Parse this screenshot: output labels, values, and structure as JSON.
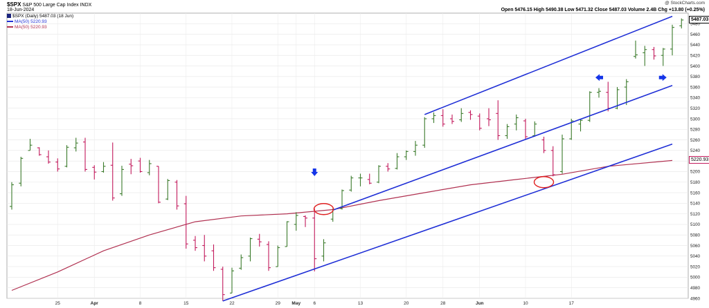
{
  "header": {
    "symbol": "$SPX",
    "name": "S&P 500 Large Cap Index",
    "exchange": "INDX",
    "date": "18-Jun-2024",
    "watermark": "@ StockCharts.com",
    "ohlc": "Open 5476.15  High 5490.38  Low 5471.32  Close 5487.03  Volume 2.4B  Chg +13.80 (+0.25%)"
  },
  "legend": {
    "price": "$SPX (Daily) 5487.03 (18 Jun)",
    "ma_a": "MA(50) 5220.93",
    "ma_b": "MA(50) 5220.93"
  },
  "last_price_label": "5487.03",
  "last_ma_label": "5220.93",
  "colors": {
    "up": "#3a7a2a",
    "down": "#c2185b",
    "ma": "#b03050",
    "channel": "#1f2fd6",
    "circle": "#e02020",
    "arrow": "#1535e8"
  },
  "chart_data": {
    "type": "ohlc",
    "ylim": [
      4960,
      5500
    ],
    "y_ticks": [
      4960,
      4980,
      5000,
      5020,
      5040,
      5060,
      5080,
      5100,
      5120,
      5140,
      5160,
      5180,
      5200,
      5220,
      5240,
      5260,
      5280,
      5300,
      5320,
      5340,
      5360,
      5380,
      5400,
      5420,
      5440,
      5460,
      5480
    ],
    "x_labels": [
      {
        "i": 5,
        "label": "25"
      },
      {
        "i": 9,
        "label": "Apr"
      },
      {
        "i": 14,
        "label": "8"
      },
      {
        "i": 19,
        "label": "15"
      },
      {
        "i": 24,
        "label": "22"
      },
      {
        "i": 29,
        "label": "29"
      },
      {
        "i": 31,
        "label": "May"
      },
      {
        "i": 33,
        "label": "6"
      },
      {
        "i": 38,
        "label": "13"
      },
      {
        "i": 43,
        "label": "20"
      },
      {
        "i": 47,
        "label": "28"
      },
      {
        "i": 51,
        "label": "Jun"
      },
      {
        "i": 56,
        "label": "10"
      },
      {
        "i": 61,
        "label": "17"
      }
    ],
    "bars": [
      {
        "o": 5134,
        "h": 5180,
        "l": 5128,
        "c": 5175
      },
      {
        "o": 5178,
        "h": 5228,
        "l": 5172,
        "c": 5225
      },
      {
        "o": 5240,
        "h": 5262,
        "l": 5240,
        "c": 5250
      },
      {
        "o": 5245,
        "h": 5246,
        "l": 5230,
        "c": 5232
      },
      {
        "o": 5228,
        "h": 5240,
        "l": 5215,
        "c": 5218
      },
      {
        "o": 5218,
        "h": 5225,
        "l": 5200,
        "c": 5205
      },
      {
        "o": 5210,
        "h": 5250,
        "l": 5208,
        "c": 5246
      },
      {
        "o": 5245,
        "h": 5264,
        "l": 5238,
        "c": 5254
      },
      {
        "o": 5256,
        "h": 5264,
        "l": 5200,
        "c": 5204
      },
      {
        "o": 5208,
        "h": 5212,
        "l": 5185,
        "c": 5199
      },
      {
        "o": 5200,
        "h": 5218,
        "l": 5198,
        "c": 5210
      },
      {
        "o": 5212,
        "h": 5255,
        "l": 5145,
        "c": 5150
      },
      {
        "o": 5158,
        "h": 5211,
        "l": 5154,
        "c": 5204
      },
      {
        "o": 5214,
        "h": 5224,
        "l": 5195,
        "c": 5211
      },
      {
        "o": 5220,
        "h": 5226,
        "l": 5198,
        "c": 5200
      },
      {
        "o": 5198,
        "h": 5222,
        "l": 5193,
        "c": 5215
      },
      {
        "o": 5210,
        "h": 5210,
        "l": 5140,
        "c": 5142
      },
      {
        "o": 5148,
        "h": 5186,
        "l": 5146,
        "c": 5183
      },
      {
        "o": 5180,
        "h": 5184,
        "l": 5128,
        "c": 5135
      },
      {
        "o": 5139,
        "h": 5154,
        "l": 5054,
        "c": 5063
      },
      {
        "o": 5070,
        "h": 5078,
        "l": 5050,
        "c": 5056
      },
      {
        "o": 5060,
        "h": 5080,
        "l": 5030,
        "c": 5040
      },
      {
        "o": 5050,
        "h": 5062,
        "l": 5012,
        "c": 5018
      },
      {
        "o": 5015,
        "h": 5020,
        "l": 4955,
        "c": 4967
      },
      {
        "o": 4970,
        "h": 5018,
        "l": 4970,
        "c": 5012
      },
      {
        "o": 5017,
        "h": 5043,
        "l": 5014,
        "c": 5037
      },
      {
        "o": 5040,
        "h": 5075,
        "l": 5030,
        "c": 5073
      },
      {
        "o": 5072,
        "h": 5082,
        "l": 5058,
        "c": 5067
      },
      {
        "o": 5062,
        "h": 5068,
        "l": 5012,
        "c": 5018
      },
      {
        "o": 5020,
        "h": 5060,
        "l": 5020,
        "c": 5056
      },
      {
        "o": 5058,
        "h": 5106,
        "l": 5058,
        "c": 5105
      },
      {
        "o": 5100,
        "h": 5123,
        "l": 5088,
        "c": 5117
      },
      {
        "o": 5115,
        "h": 5117,
        "l": 5095,
        "c": 5112
      },
      {
        "o": 5112,
        "h": 5130,
        "l": 5011,
        "c": 5035
      },
      {
        "o": 5040,
        "h": 5072,
        "l": 5030,
        "c": 5065
      },
      {
        "o": 5110,
        "h": 5130,
        "l": 5105,
        "c": 5128
      },
      {
        "o": 5130,
        "h": 5166,
        "l": 5128,
        "c": 5164
      },
      {
        "o": 5165,
        "h": 5192,
        "l": 5162,
        "c": 5188
      },
      {
        "o": 5188,
        "h": 5196,
        "l": 5172,
        "c": 5188
      },
      {
        "o": 5185,
        "h": 5196,
        "l": 5176,
        "c": 5178
      },
      {
        "o": 5180,
        "h": 5212,
        "l": 5178,
        "c": 5210
      },
      {
        "o": 5210,
        "h": 5216,
        "l": 5200,
        "c": 5205
      },
      {
        "o": 5206,
        "h": 5235,
        "l": 5204,
        "c": 5228
      },
      {
        "o": 5228,
        "h": 5240,
        "l": 5222,
        "c": 5238
      },
      {
        "o": 5238,
        "h": 5258,
        "l": 5230,
        "c": 5250
      },
      {
        "o": 5250,
        "h": 5303,
        "l": 5245,
        "c": 5300
      },
      {
        "o": 5300,
        "h": 5312,
        "l": 5292,
        "c": 5306
      },
      {
        "o": 5306,
        "h": 5318,
        "l": 5285,
        "c": 5290
      },
      {
        "o": 5300,
        "h": 5308,
        "l": 5290,
        "c": 5295
      },
      {
        "o": 5298,
        "h": 5320,
        "l": 5294,
        "c": 5310
      },
      {
        "o": 5312,
        "h": 5316,
        "l": 5298,
        "c": 5308
      },
      {
        "o": 5305,
        "h": 5310,
        "l": 5278,
        "c": 5282
      },
      {
        "o": 5300,
        "h": 5320,
        "l": 5286,
        "c": 5298
      },
      {
        "o": 5310,
        "h": 5335,
        "l": 5260,
        "c": 5268
      },
      {
        "o": 5268,
        "h": 5290,
        "l": 5262,
        "c": 5285
      },
      {
        "o": 5290,
        "h": 5308,
        "l": 5278,
        "c": 5302
      },
      {
        "o": 5296,
        "h": 5300,
        "l": 5260,
        "c": 5266
      },
      {
        "o": 5268,
        "h": 5295,
        "l": 5266,
        "c": 5290
      },
      {
        "o": 5260,
        "h": 5266,
        "l": 5235,
        "c": 5240
      },
      {
        "o": 5240,
        "h": 5248,
        "l": 5191,
        "c": 5194
      },
      {
        "o": 5200,
        "h": 5270,
        "l": 5196,
        "c": 5262
      },
      {
        "o": 5262,
        "h": 5300,
        "l": 5260,
        "c": 5296
      },
      {
        "o": 5290,
        "h": 5300,
        "l": 5276,
        "c": 5297
      },
      {
        "o": 5297,
        "h": 5352,
        "l": 5294,
        "c": 5350
      },
      {
        "o": 5350,
        "h": 5358,
        "l": 5340,
        "c": 5352
      },
      {
        "o": 5350,
        "h": 5370,
        "l": 5314,
        "c": 5320
      },
      {
        "o": 5320,
        "h": 5360,
        "l": 5318,
        "c": 5355
      },
      {
        "o": 5360,
        "h": 5375,
        "l": 5326,
        "c": 5370
      },
      {
        "o": 5418,
        "h": 5448,
        "l": 5414,
        "c": 5421
      },
      {
        "o": 5425,
        "h": 5438,
        "l": 5400,
        "c": 5431
      },
      {
        "o": 5431,
        "h": 5436,
        "l": 5412,
        "c": 5419
      },
      {
        "o": 5420,
        "h": 5434,
        "l": 5400,
        "c": 5432
      },
      {
        "o": 5432,
        "h": 5478,
        "l": 5420,
        "c": 5473
      },
      {
        "o": 5476,
        "h": 5490,
        "l": 5471,
        "c": 5487
      }
    ],
    "ma50": [
      {
        "i": 0,
        "v": 4975
      },
      {
        "i": 5,
        "v": 5010
      },
      {
        "i": 10,
        "v": 5050
      },
      {
        "i": 15,
        "v": 5080
      },
      {
        "i": 20,
        "v": 5105
      },
      {
        "i": 25,
        "v": 5116
      },
      {
        "i": 30,
        "v": 5120
      },
      {
        "i": 35,
        "v": 5128
      },
      {
        "i": 40,
        "v": 5145
      },
      {
        "i": 45,
        "v": 5160
      },
      {
        "i": 50,
        "v": 5175
      },
      {
        "i": 55,
        "v": 5185
      },
      {
        "i": 60,
        "v": 5195
      },
      {
        "i": 65,
        "v": 5210
      },
      {
        "i": 72,
        "v": 5221
      }
    ],
    "channel_lines": [
      {
        "from": {
          "i": 45,
          "v": 5308
        },
        "to": {
          "i": 72,
          "v": 5494
        }
      },
      {
        "from": {
          "i": 35,
          "v": 5127
        },
        "to": {
          "i": 72,
          "v": 5363
        }
      },
      {
        "from": {
          "i": 23,
          "v": 4955
        },
        "to": {
          "i": 72,
          "v": 5252
        }
      }
    ],
    "circles": [
      {
        "i": 34,
        "v": 5129
      },
      {
        "i": 58,
        "v": 5180
      }
    ],
    "arrows": [
      {
        "i": 33,
        "v": 5198,
        "dir": "down"
      },
      {
        "i": 64,
        "v": 5378,
        "dir": "left"
      },
      {
        "i": 71,
        "v": 5378,
        "dir": "right"
      }
    ]
  }
}
